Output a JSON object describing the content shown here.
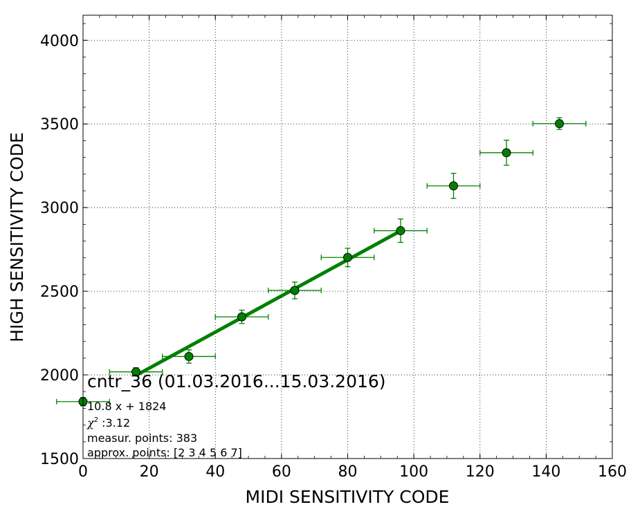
{
  "chart_data": {
    "type": "scatter",
    "title": "",
    "xlabel": "MIDI SENSITIVITY CODE",
    "ylabel": "HIGH SENSITIVITY CODE",
    "xlim": [
      0,
      160
    ],
    "ylim": [
      1500,
      4150
    ],
    "xticks": [
      "0",
      "20",
      "40",
      "60",
      "80",
      "100",
      "120",
      "140",
      "160"
    ],
    "yticks": [
      "1500",
      "2000",
      "2500",
      "3000",
      "3500",
      "4000"
    ],
    "grid": true,
    "marker_color": "#008000",
    "fit_color": "#008000",
    "points": [
      {
        "x": 0,
        "y": 1840,
        "xerr": 8,
        "yerr": 25
      },
      {
        "x": 16,
        "y": 2018,
        "xerr": 8,
        "yerr": 25
      },
      {
        "x": 32,
        "y": 2110,
        "xerr": 8,
        "yerr": 40
      },
      {
        "x": 48,
        "y": 2347,
        "xerr": 8,
        "yerr": 40
      },
      {
        "x": 64,
        "y": 2505,
        "xerr": 8,
        "yerr": 50
      },
      {
        "x": 80,
        "y": 2702,
        "xerr": 8,
        "yerr": 55
      },
      {
        "x": 96,
        "y": 2862,
        "xerr": 8,
        "yerr": 70
      },
      {
        "x": 112,
        "y": 3130,
        "xerr": 8,
        "yerr": 75
      },
      {
        "x": 128,
        "y": 3328,
        "xerr": 8,
        "yerr": 75
      },
      {
        "x": 144,
        "y": 3502,
        "xerr": 8,
        "yerr": 35
      }
    ],
    "fit": {
      "slope": 10.8,
      "intercept": 1824,
      "x_start": 16,
      "x_end": 96
    },
    "annotations": {
      "title": "cntr_36 (01.03.2016...15.03.2016)",
      "equation": "10.8 x + 1824",
      "chi2_symbol": "χ",
      "chi2_power": "2",
      "chi2_value": " :3.12",
      "measur_points": "measur. points: 383",
      "approx_points": "approx. points: [2 3 4 5 6 7]"
    }
  }
}
